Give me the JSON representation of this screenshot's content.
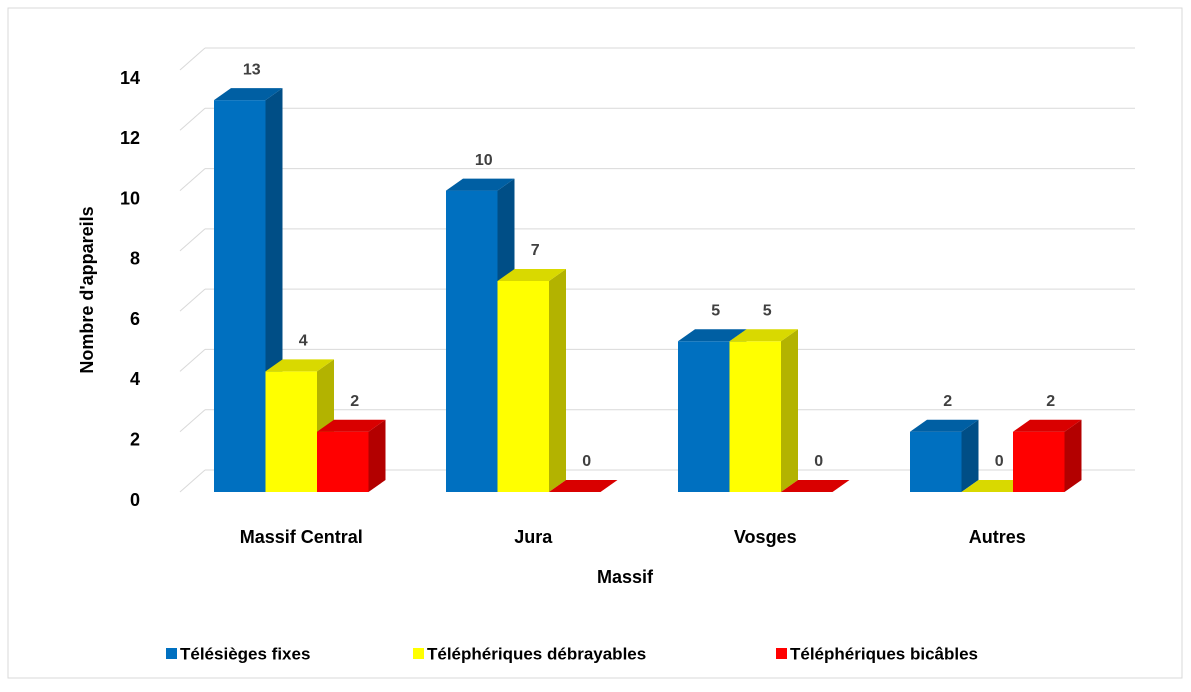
{
  "chart_data": {
    "type": "bar3d",
    "x_label": "Massif",
    "y_label": "Nombre d'appareils",
    "categories": [
      "Massif Central",
      "Jura",
      "Vosges",
      "Autres"
    ],
    "series": [
      {
        "name": "Télésièges fixes",
        "color": "#0070c0",
        "values": [
          13,
          10,
          5,
          2
        ]
      },
      {
        "name": "Téléphériques débrayables",
        "color": "#ffff00",
        "values": [
          4,
          7,
          5,
          0
        ]
      },
      {
        "name": "Téléphériques bicâbles",
        "color": "#ff0000",
        "values": [
          2,
          0,
          0,
          2
        ]
      }
    ],
    "ylim": [
      0,
      14
    ],
    "yticks": [
      0,
      2,
      4,
      6,
      8,
      10,
      12,
      14
    ],
    "grid": true,
    "legend": "bottom"
  }
}
